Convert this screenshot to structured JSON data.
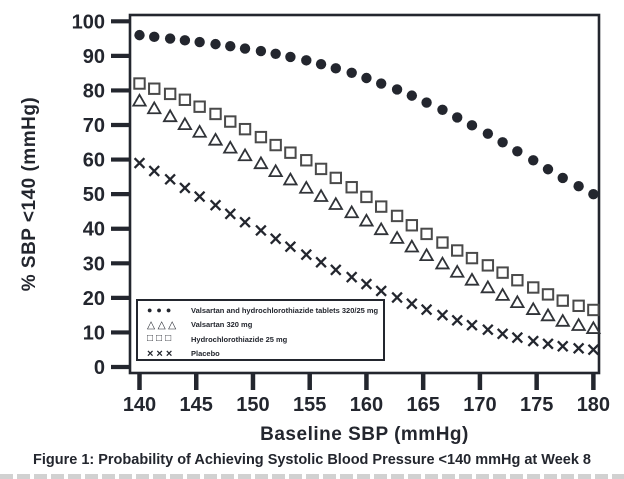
{
  "figure": {
    "caption": "Figure 1: Probability of Achieving Systolic Blood Pressure <140 mmHg at Week 8"
  },
  "chart_data": {
    "type": "scatter",
    "title": "",
    "xlabel": "Baseline SBP (mmHg)",
    "ylabel": "% SBP <140 (mmHg)",
    "xticks": [
      140,
      145,
      150,
      155,
      160,
      165,
      170,
      175,
      180
    ],
    "yticks": [
      0,
      10,
      20,
      30,
      40,
      50,
      60,
      70,
      80,
      90,
      100
    ],
    "xlim": [
      139.2,
      180.5
    ],
    "ylim": [
      -1.7,
      103.5
    ],
    "grid": false,
    "legend_position": "lower-left-inside",
    "x": [
      140,
      141.3,
      142.7,
      144,
      145.3,
      146.7,
      148,
      149.3,
      150.7,
      152,
      153.3,
      154.7,
      156,
      157.3,
      158.7,
      160,
      161.3,
      162.7,
      164,
      165.3,
      166.7,
      168,
      169.3,
      170.7,
      172,
      173.3,
      174.7,
      176,
      177.3,
      178.7,
      180
    ],
    "series": [
      {
        "name": "Valsartan and hydrochlorothiazide tablets 320/25 mg",
        "marker": "filled-circle",
        "values": [
          96,
          95.5,
          95,
          94.5,
          94,
          93.4,
          92.8,
          92.1,
          91.4,
          90.6,
          89.7,
          88.7,
          87.6,
          86.4,
          85.1,
          83.6,
          82,
          80.3,
          78.5,
          76.5,
          74.4,
          72.2,
          69.9,
          67.5,
          65,
          62.4,
          59.8,
          57.2,
          54.7,
          52.3,
          50
        ]
      },
      {
        "name": "Valsartan 320 mg",
        "marker": "open-triangle",
        "values": [
          77,
          74.8,
          72.5,
          70.2,
          68,
          65.7,
          63.4,
          61.2,
          58.9,
          56.6,
          54.2,
          51.8,
          49.4,
          47.1,
          44.7,
          42.3,
          39.8,
          37.3,
          34.8,
          32.3,
          29.9,
          27.5,
          25.2,
          23,
          20.8,
          18.7,
          16.7,
          14.9,
          13.3,
          12.1,
          11.2
        ]
      },
      {
        "name": "Hydrochlorothiazide 25 mg",
        "marker": "open-square",
        "values": [
          82,
          80.5,
          79,
          77.3,
          75.3,
          73.2,
          71,
          68.8,
          66.5,
          64.2,
          62,
          59.8,
          57.3,
          54.7,
          52,
          49.2,
          46.4,
          43.7,
          41,
          38.5,
          36,
          33.7,
          31.5,
          29.4,
          27.3,
          25.1,
          23,
          21,
          19.2,
          17.7,
          16.5
        ]
      },
      {
        "name": "Placebo",
        "marker": "x-cross",
        "values": [
          59,
          56.7,
          54.3,
          51.8,
          49.3,
          46.8,
          44.3,
          41.9,
          39.5,
          37.1,
          34.8,
          32.5,
          30.3,
          28.1,
          26,
          24,
          22,
          20.1,
          18.3,
          16.6,
          15,
          13.5,
          12.1,
          10.8,
          9.6,
          8.5,
          7.5,
          6.7,
          6,
          5.4,
          5
        ]
      }
    ]
  },
  "icons": {
    "series_markers": [
      "●●●",
      "△△△",
      "□□□",
      "×××"
    ]
  },
  "colors": {
    "ink": "#23262e",
    "square_stroke": "#4a4a4a",
    "triangle_stroke": "#303338",
    "background": "#ffffff"
  }
}
